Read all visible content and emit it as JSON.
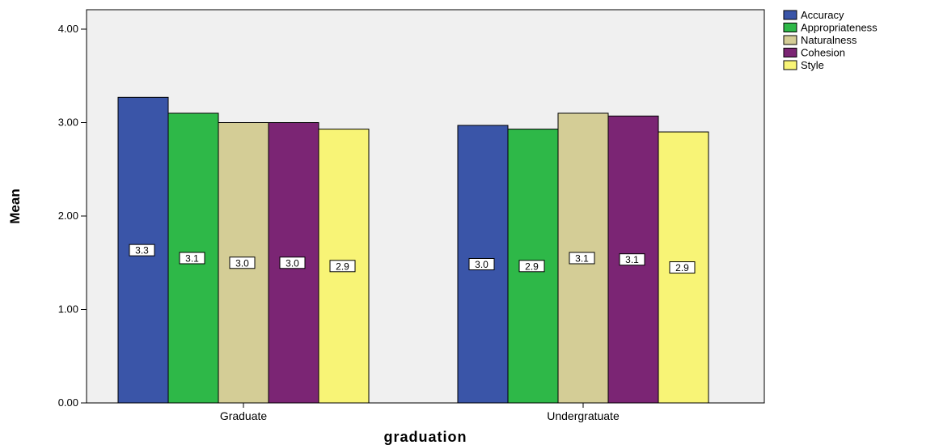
{
  "chart_data": {
    "type": "bar",
    "xlabel": "graduation",
    "ylabel": "Mean",
    "ylim": [
      0,
      4.2
    ],
    "yticks": [
      "0.00",
      "1.00",
      "2.00",
      "3.00",
      "4.00"
    ],
    "ytick_values": [
      0,
      1,
      2,
      3,
      4
    ],
    "categories": [
      "Graduate",
      "Undergratuate"
    ],
    "legend_position": "top-right outside",
    "grid": false,
    "plot_background": "#f0f0f0",
    "series": [
      {
        "name": "Accuracy",
        "color": "#3a55a8",
        "values": [
          3.27,
          2.97
        ],
        "labels": [
          "3.3",
          "3.0"
        ]
      },
      {
        "name": "Appropriateness",
        "color": "#2eb848",
        "values": [
          3.1,
          2.93
        ],
        "labels": [
          "3.1",
          "2.9"
        ]
      },
      {
        "name": "Naturalness",
        "color": "#d4cd96",
        "values": [
          3.0,
          3.1
        ],
        "labels": [
          "3.0",
          "3.1"
        ]
      },
      {
        "name": "Cohesion",
        "color": "#7b2574",
        "values": [
          3.0,
          3.07
        ],
        "labels": [
          "3.0",
          "3.1"
        ]
      },
      {
        "name": "Style",
        "color": "#f8f476",
        "values": [
          2.93,
          2.9
        ],
        "labels": [
          "2.9",
          "2.9"
        ]
      }
    ]
  }
}
